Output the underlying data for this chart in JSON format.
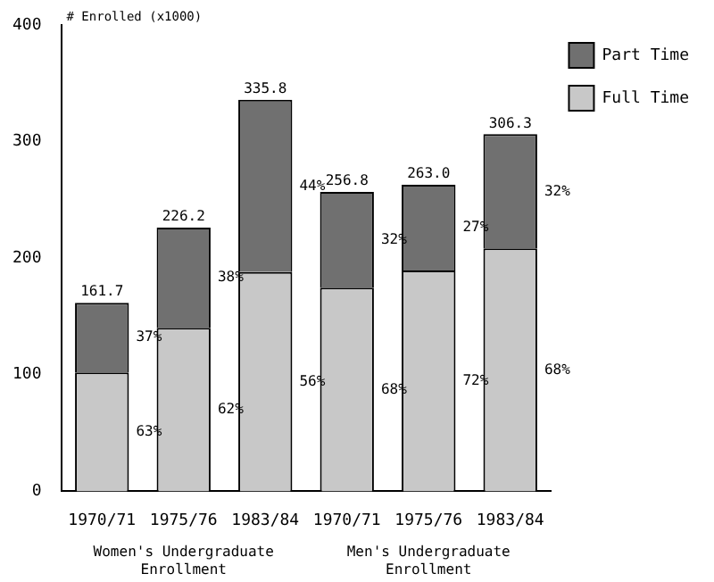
{
  "chart_data": {
    "type": "bar",
    "stacked": true,
    "ylabel": "# Enrolled (x1000)",
    "categories": [
      "1970/71",
      "1975/76",
      "1983/84",
      "1970/71",
      "1975/76",
      "1983/84"
    ],
    "series": [
      {
        "name": "Full Time",
        "color": "#c8c8c8",
        "values": [
          101.9,
          140.2,
          188.0,
          174.6,
          189.4,
          208.3
        ]
      },
      {
        "name": "Part Time",
        "color": "#707070",
        "values": [
          59.8,
          86.0,
          147.8,
          82.2,
          73.6,
          98.0
        ]
      }
    ],
    "totals": [
      "161.7",
      "226.2",
      "335.8",
      "256.8",
      "263.0",
      "306.3"
    ],
    "ylim": [
      0,
      400
    ],
    "yticks": [
      0,
      100,
      200,
      300,
      400
    ],
    "grid": false,
    "legend": "top right",
    "annotations": [
      "Women's Undergraduate Enrollment",
      "Men's Undergraduate Enrollment",
      "63%",
      "62%",
      "56%",
      "68%",
      "72%",
      "68%",
      "37%",
      "38%",
      "44%",
      "32%",
      "27%",
      "32%"
    ]
  }
}
